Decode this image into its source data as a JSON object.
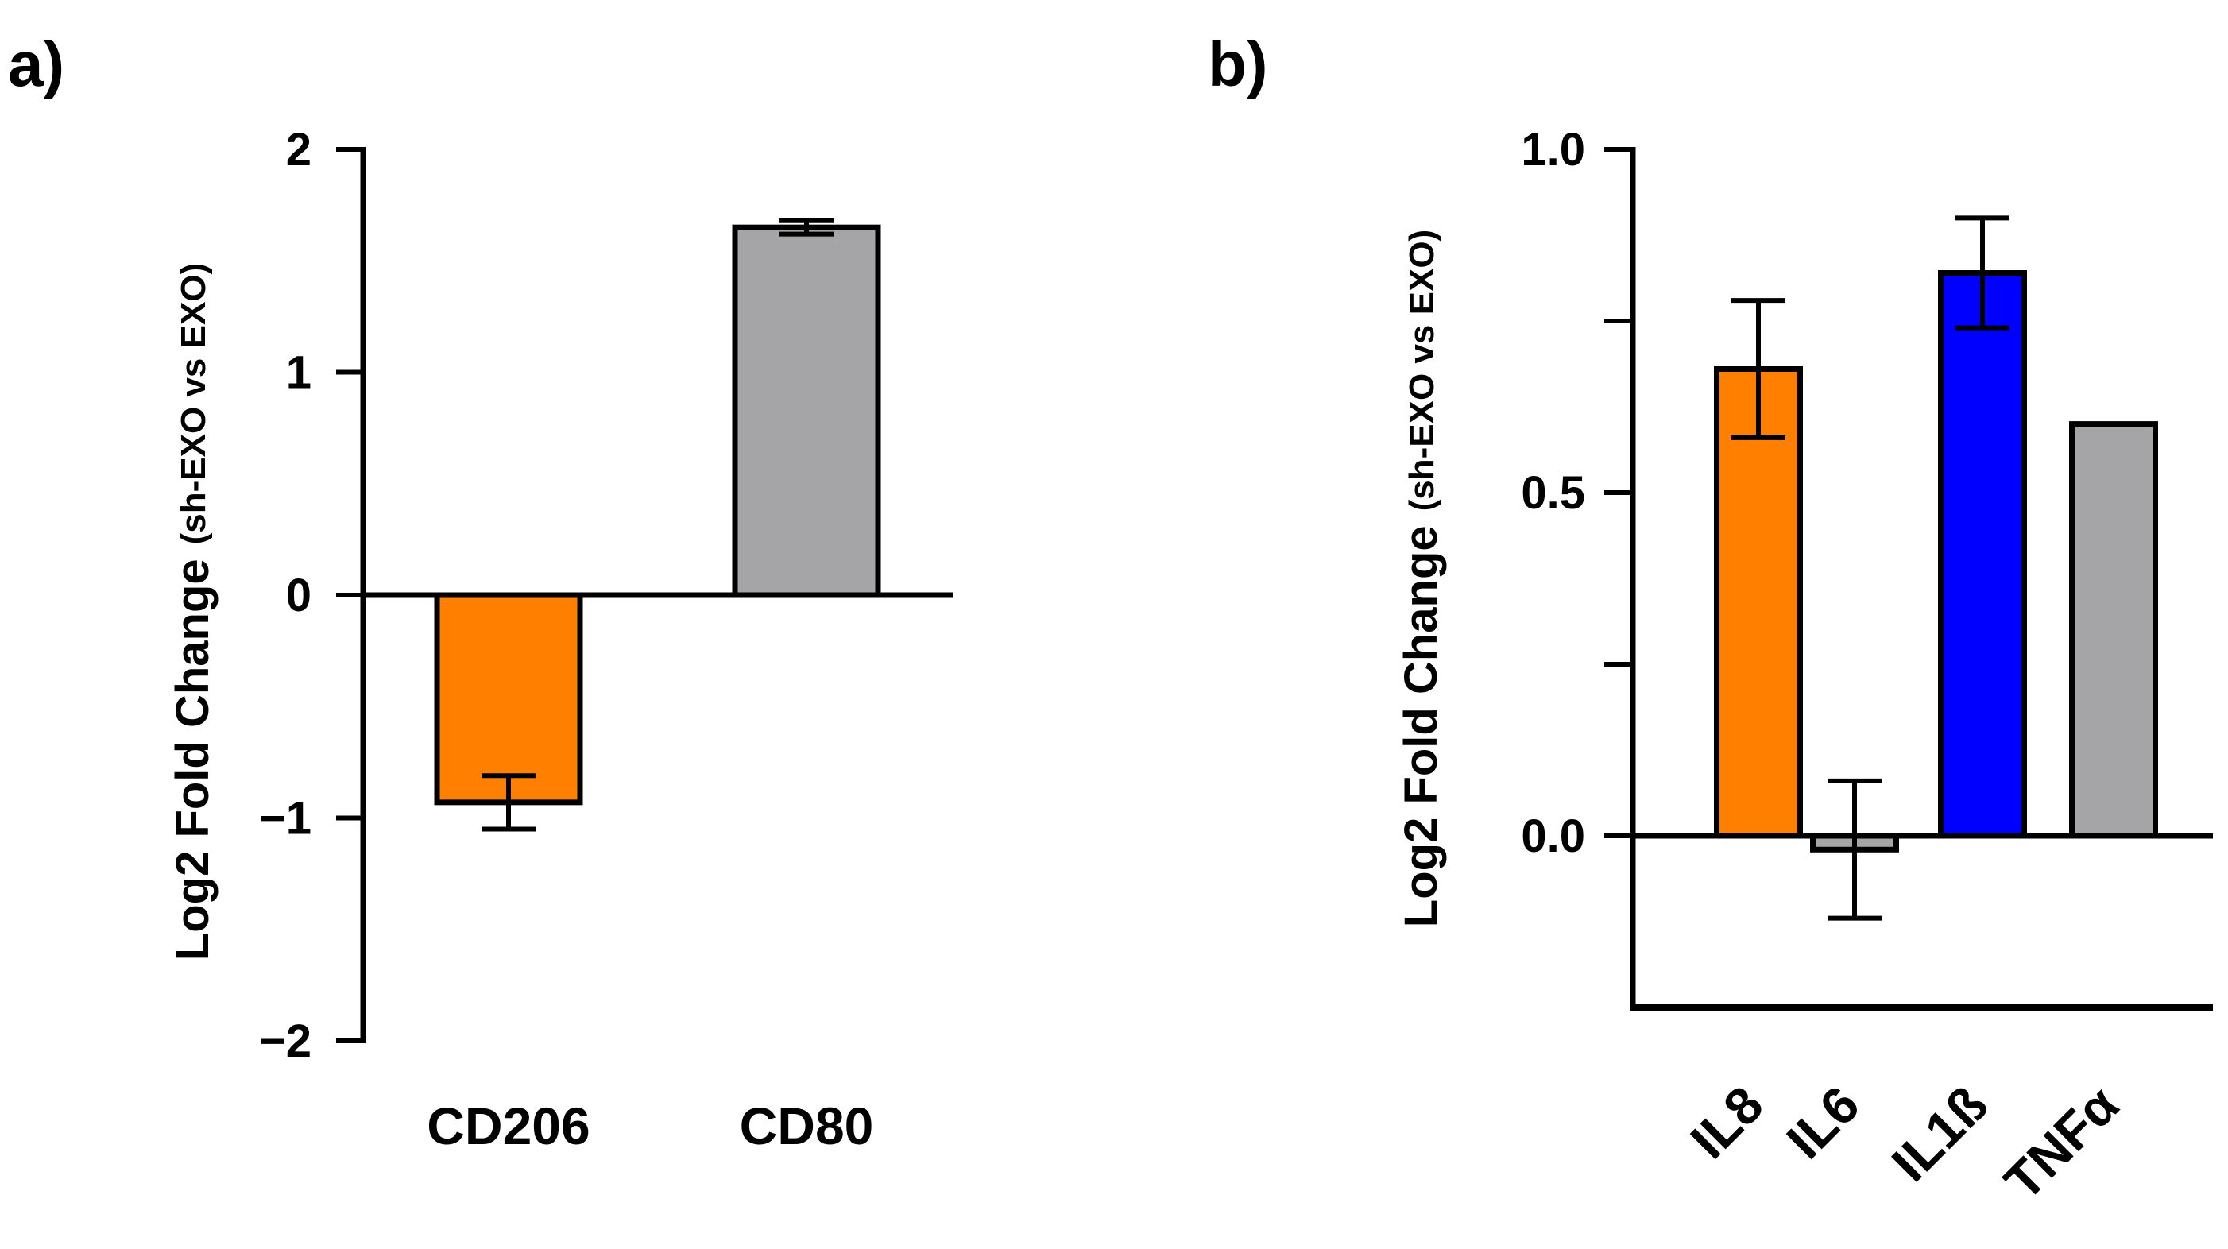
{
  "chart_data": [
    {
      "type": "bar",
      "panel_label": "a)",
      "categories": [
        "CD206",
        "CD80"
      ],
      "values": [
        -0.93,
        1.65
      ],
      "errors": [
        0.12,
        0.03
      ],
      "colors": [
        "#FF8000",
        "#A5A5A8"
      ],
      "ylabel_main": "Log2 Fold Change",
      "ylabel_sub": "(sh-EXO vs EXO)",
      "ylim": [
        -2,
        2
      ],
      "yticks": [
        -2,
        -1,
        0,
        1,
        2
      ],
      "ytick_labels": [
        "−2",
        "−1",
        "0",
        "1",
        "2"
      ]
    },
    {
      "type": "bar",
      "panel_label": "b)",
      "categories": [
        "IL8",
        "IL6",
        "IL1ß",
        "TNFα"
      ],
      "values": [
        0.68,
        -0.02,
        0.82,
        0.6
      ],
      "errors": [
        0.1,
        0.1,
        0.08,
        0
      ],
      "colors": [
        "#FF8000",
        "#A5A5A8",
        "#0000FF",
        "#A5A5A8"
      ],
      "ylabel_main": "Log2 Fold Change",
      "ylabel_sub": "(sh-EXO vs EXO)",
      "ylim": [
        -0.25,
        1.0
      ],
      "yticks": [
        0,
        0.25,
        0.5,
        0.75,
        1.0
      ],
      "ytick_labels": [
        "0.0",
        "",
        "0.5",
        "",
        "1.0"
      ]
    }
  ]
}
